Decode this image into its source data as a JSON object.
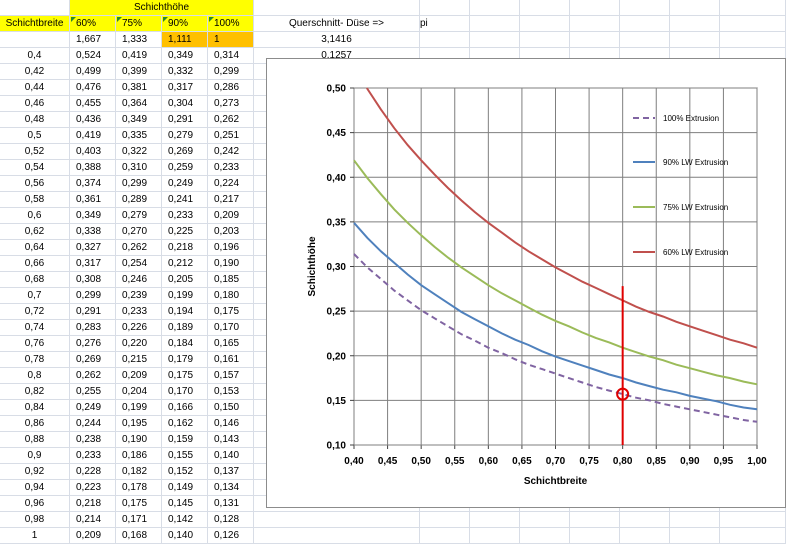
{
  "sheet": {
    "header_title": "Schichthöhe",
    "col_label": "Schichtbreite",
    "percent_headers": [
      "60%",
      "75%",
      "90%",
      "100%"
    ],
    "factors": [
      "1,667",
      "1,333",
      "1,111",
      "1"
    ],
    "cross_section_label": "Querschnitt- Düse =>",
    "pi_label": "pi",
    "pi_value": "3,1416",
    "area_value": "0,1257",
    "rows": [
      [
        "0,4",
        "0,524",
        "0,419",
        "0,349",
        "0,314"
      ],
      [
        "0,42",
        "0,499",
        "0,399",
        "0,332",
        "0,299"
      ],
      [
        "0,44",
        "0,476",
        "0,381",
        "0,317",
        "0,286"
      ],
      [
        "0,46",
        "0,455",
        "0,364",
        "0,304",
        "0,273"
      ],
      [
        "0,48",
        "0,436",
        "0,349",
        "0,291",
        "0,262"
      ],
      [
        "0,5",
        "0,419",
        "0,335",
        "0,279",
        "0,251"
      ],
      [
        "0,52",
        "0,403",
        "0,322",
        "0,269",
        "0,242"
      ],
      [
        "0,54",
        "0,388",
        "0,310",
        "0,259",
        "0,233"
      ],
      [
        "0,56",
        "0,374",
        "0,299",
        "0,249",
        "0,224"
      ],
      [
        "0,58",
        "0,361",
        "0,289",
        "0,241",
        "0,217"
      ],
      [
        "0,6",
        "0,349",
        "0,279",
        "0,233",
        "0,209"
      ],
      [
        "0,62",
        "0,338",
        "0,270",
        "0,225",
        "0,203"
      ],
      [
        "0,64",
        "0,327",
        "0,262",
        "0,218",
        "0,196"
      ],
      [
        "0,66",
        "0,317",
        "0,254",
        "0,212",
        "0,190"
      ],
      [
        "0,68",
        "0,308",
        "0,246",
        "0,205",
        "0,185"
      ],
      [
        "0,7",
        "0,299",
        "0,239",
        "0,199",
        "0,180"
      ],
      [
        "0,72",
        "0,291",
        "0,233",
        "0,194",
        "0,175"
      ],
      [
        "0,74",
        "0,283",
        "0,226",
        "0,189",
        "0,170"
      ],
      [
        "0,76",
        "0,276",
        "0,220",
        "0,184",
        "0,165"
      ],
      [
        "0,78",
        "0,269",
        "0,215",
        "0,179",
        "0,161"
      ],
      [
        "0,8",
        "0,262",
        "0,209",
        "0,175",
        "0,157"
      ],
      [
        "0,82",
        "0,255",
        "0,204",
        "0,170",
        "0,153"
      ],
      [
        "0,84",
        "0,249",
        "0,199",
        "0,166",
        "0,150"
      ],
      [
        "0,86",
        "0,244",
        "0,195",
        "0,162",
        "0,146"
      ],
      [
        "0,88",
        "0,238",
        "0,190",
        "0,159",
        "0,143"
      ],
      [
        "0,9",
        "0,233",
        "0,186",
        "0,155",
        "0,140"
      ],
      [
        "0,92",
        "0,228",
        "0,182",
        "0,152",
        "0,137"
      ],
      [
        "0,94",
        "0,223",
        "0,178",
        "0,149",
        "0,134"
      ],
      [
        "0,96",
        "0,218",
        "0,175",
        "0,145",
        "0,131"
      ],
      [
        "0,98",
        "0,214",
        "0,171",
        "0,142",
        "0,128"
      ],
      [
        "1",
        "0,209",
        "0,168",
        "0,140",
        "0,126"
      ]
    ]
  },
  "chart_data": {
    "type": "line",
    "xlabel": "Schichtbreite",
    "ylabel": "Schichthöhe",
    "xlim": [
      0.4,
      1.0
    ],
    "ylim": [
      0.1,
      0.5
    ],
    "x_ticks": [
      "0,40",
      "0,45",
      "0,50",
      "0,55",
      "0,60",
      "0,65",
      "0,70",
      "0,75",
      "0,80",
      "0,85",
      "0,90",
      "0,95",
      "1,00"
    ],
    "y_ticks": [
      "0,10",
      "0,15",
      "0,20",
      "0,25",
      "0,30",
      "0,35",
      "0,40",
      "0,45",
      "0,50"
    ],
    "grid": true,
    "legend_position": "right",
    "x": [
      0.4,
      0.42,
      0.44,
      0.46,
      0.48,
      0.5,
      0.52,
      0.54,
      0.56,
      0.58,
      0.6,
      0.62,
      0.64,
      0.66,
      0.68,
      0.7,
      0.72,
      0.74,
      0.76,
      0.78,
      0.8,
      0.82,
      0.84,
      0.86,
      0.88,
      0.9,
      0.92,
      0.94,
      0.96,
      0.98,
      1.0
    ],
    "series": [
      {
        "name": "100% Extrusion",
        "color": "#8064a2",
        "dashed": true,
        "values": [
          0.314,
          0.299,
          0.286,
          0.273,
          0.262,
          0.251,
          0.242,
          0.233,
          0.224,
          0.217,
          0.209,
          0.203,
          0.196,
          0.19,
          0.185,
          0.18,
          0.175,
          0.17,
          0.165,
          0.161,
          0.157,
          0.153,
          0.15,
          0.146,
          0.143,
          0.14,
          0.137,
          0.134,
          0.131,
          0.128,
          0.126
        ]
      },
      {
        "name": "90% LW Extrusion",
        "color": "#4f81bd",
        "dashed": false,
        "values": [
          0.349,
          0.332,
          0.317,
          0.304,
          0.291,
          0.279,
          0.269,
          0.259,
          0.249,
          0.241,
          0.233,
          0.225,
          0.218,
          0.212,
          0.205,
          0.199,
          0.194,
          0.189,
          0.184,
          0.179,
          0.175,
          0.17,
          0.166,
          0.162,
          0.159,
          0.155,
          0.152,
          0.149,
          0.145,
          0.142,
          0.14
        ]
      },
      {
        "name": "75% LW Extrusion",
        "color": "#9bbb59",
        "dashed": false,
        "values": [
          0.419,
          0.399,
          0.381,
          0.364,
          0.349,
          0.335,
          0.322,
          0.31,
          0.299,
          0.289,
          0.279,
          0.27,
          0.262,
          0.254,
          0.246,
          0.239,
          0.233,
          0.226,
          0.22,
          0.215,
          0.209,
          0.204,
          0.199,
          0.195,
          0.19,
          0.186,
          0.182,
          0.178,
          0.175,
          0.171,
          0.168
        ]
      },
      {
        "name": "60% LW Extrusion",
        "color": "#c0504d",
        "dashed": false,
        "values": [
          0.524,
          0.499,
          0.476,
          0.455,
          0.436,
          0.419,
          0.403,
          0.388,
          0.374,
          0.361,
          0.349,
          0.338,
          0.327,
          0.317,
          0.308,
          0.299,
          0.291,
          0.283,
          0.276,
          0.269,
          0.262,
          0.255,
          0.249,
          0.244,
          0.238,
          0.233,
          0.228,
          0.223,
          0.218,
          0.214,
          0.209
        ]
      }
    ],
    "annotation": {
      "vline_x": 0.8,
      "vline_y_range": [
        0.1,
        0.278
      ],
      "circle_x": 0.8,
      "circle_y": 0.157,
      "color": "#e00000"
    }
  }
}
